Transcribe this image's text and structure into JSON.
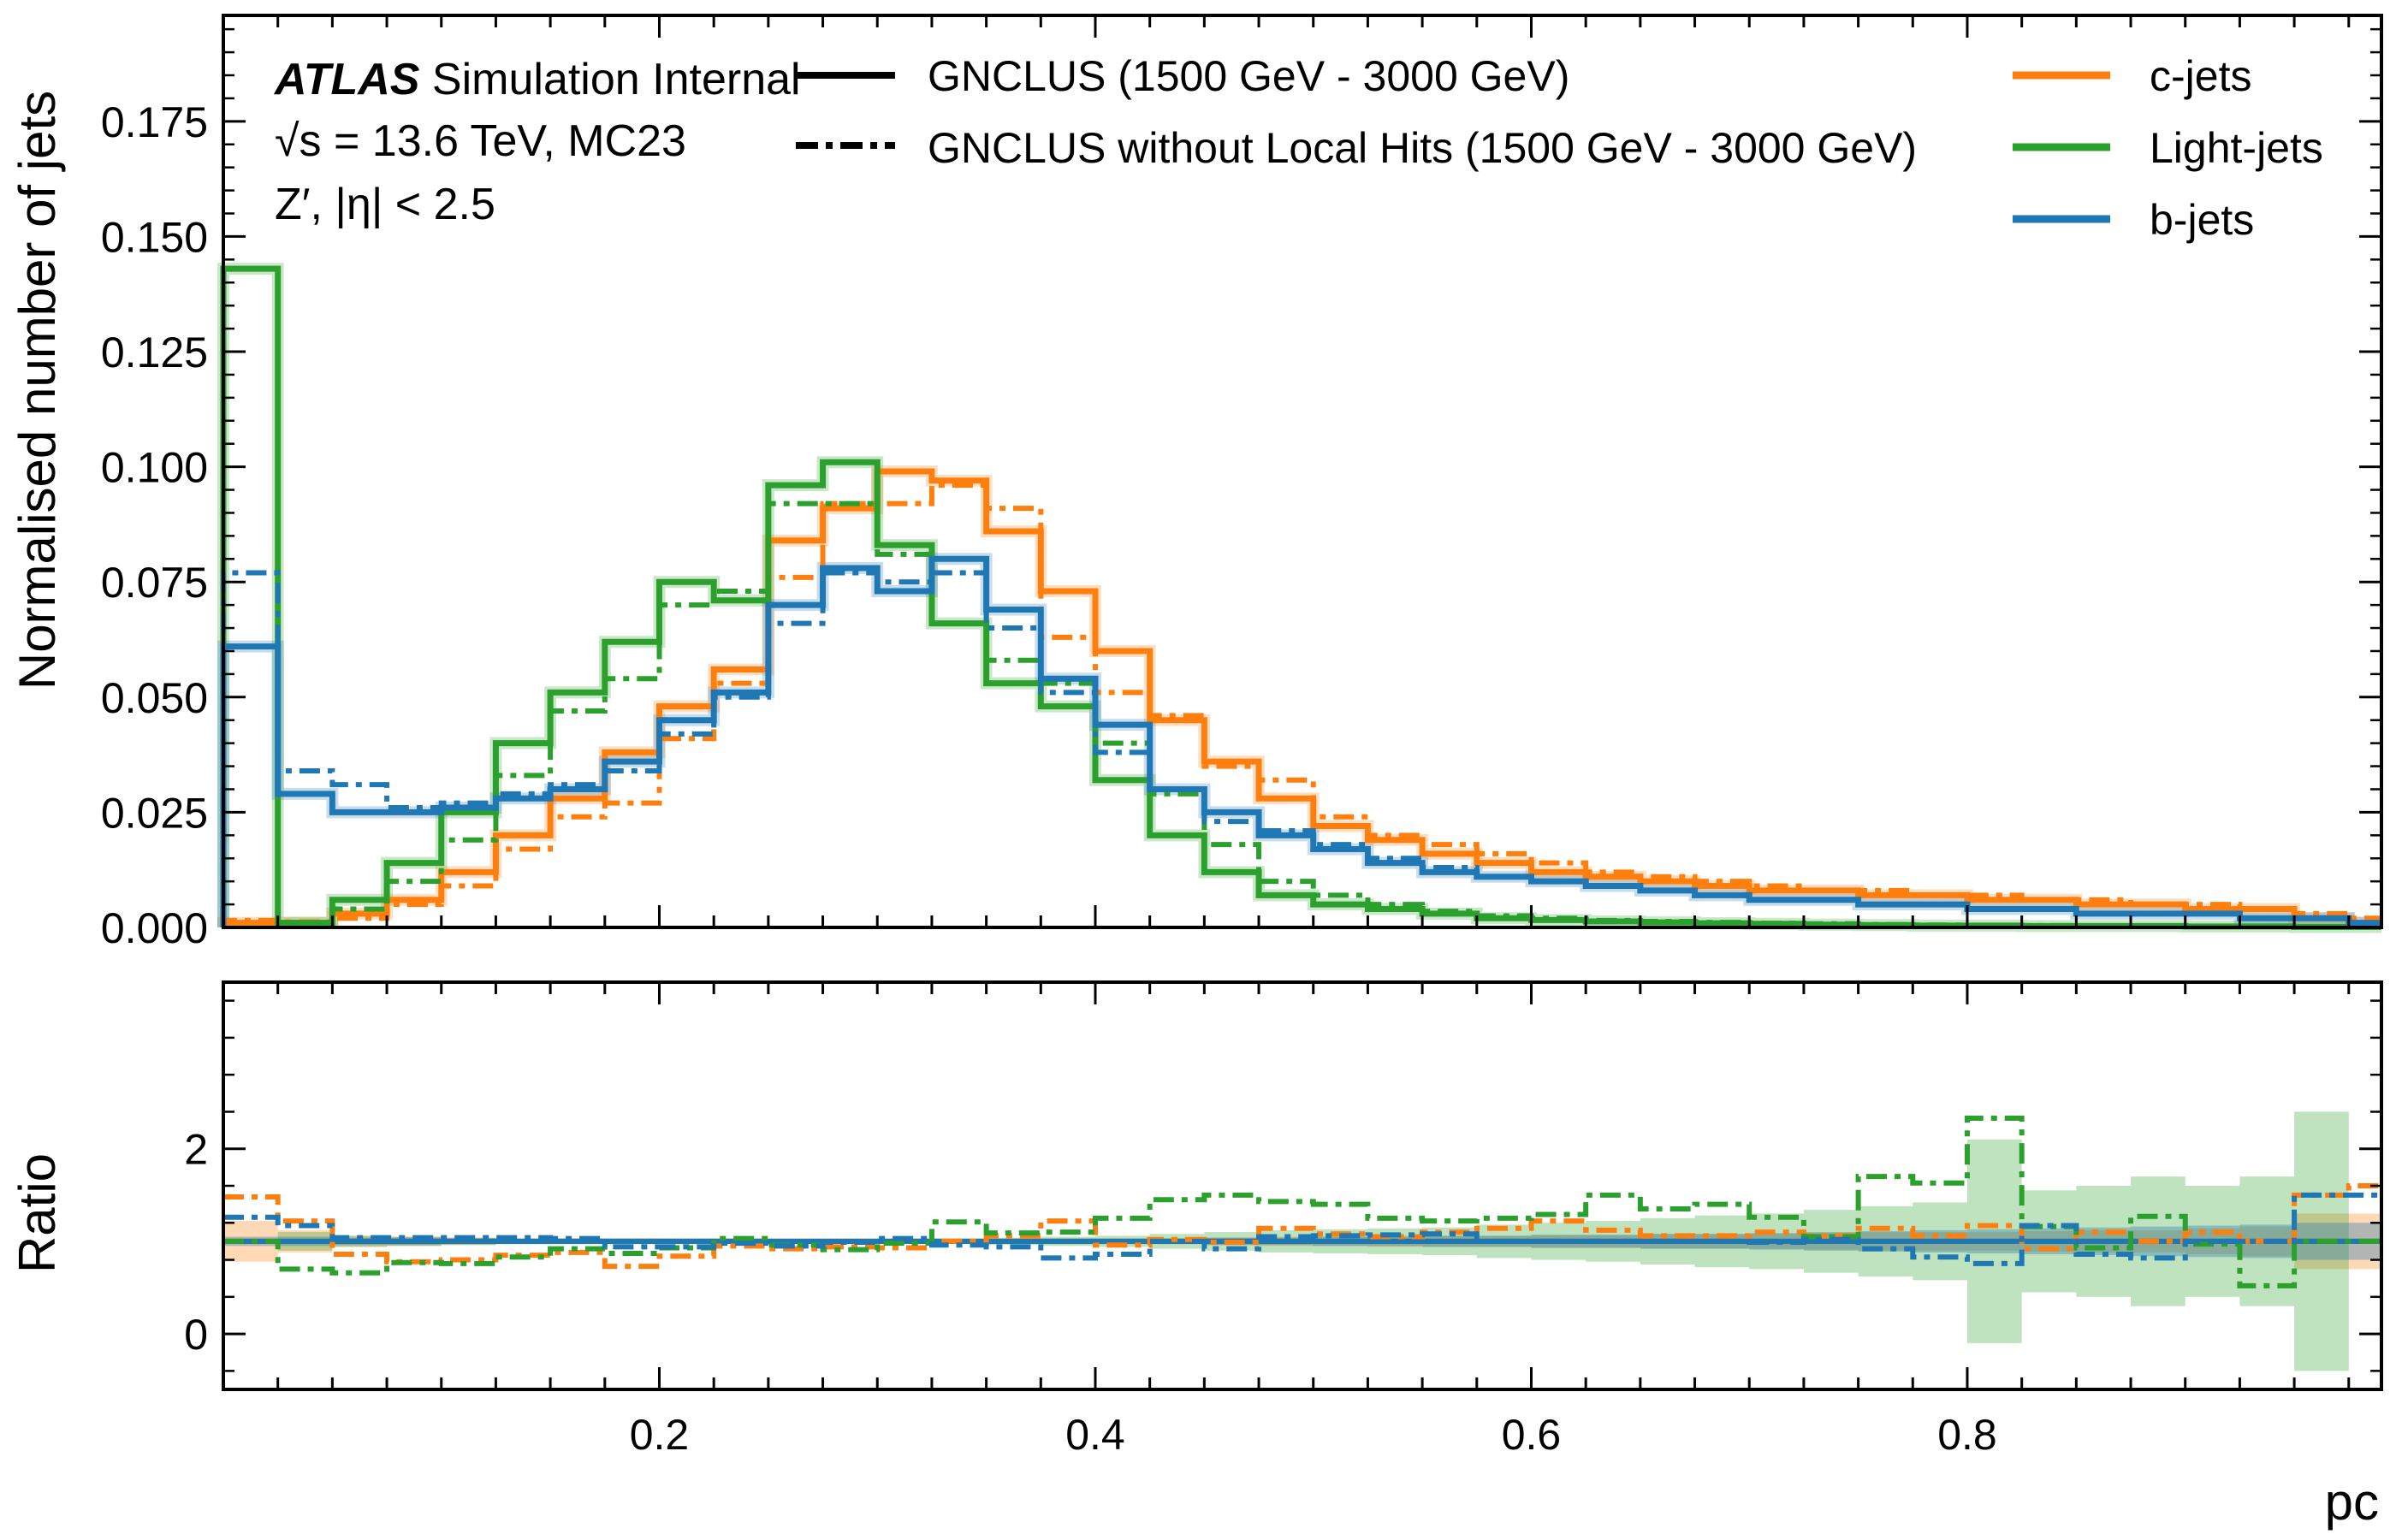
{
  "chart_data": {
    "type": "step-histogram-with-ratio",
    "atlas_label": {
      "bold": "ATLAS",
      "rest": " Simulation Internal",
      "line2": "√s = 13.6 TeV, MC23",
      "line3": "Z′, |η| < 2.5"
    },
    "style_legend": [
      {
        "label": "GNCLUS (1500 GeV - 3000 GeV)",
        "style": "solid"
      },
      {
        "label": "GNCLUS without Local Hits (1500 GeV - 3000 GeV)",
        "style": "dashdot"
      }
    ],
    "flavour_legend": [
      {
        "label": "c-jets",
        "color": "#ff7f0e"
      },
      {
        "label": "Light-jets",
        "color": "#2ca02c"
      },
      {
        "label": "b-jets",
        "color": "#1f77b4"
      }
    ],
    "xlabel": "pc",
    "top_ylabel": "Normalised number of jets",
    "bottom_ylabel": "Ratio",
    "xlim": [
      0.0,
      0.99
    ],
    "top_ylim": [
      0.0,
      0.198
    ],
    "bottom_ylim": [
      -0.6,
      3.8
    ],
    "x_ticks": [
      "0.2",
      "0.4",
      "0.6",
      "0.8"
    ],
    "x_tick_values": [
      0.2,
      0.4,
      0.6,
      0.8
    ],
    "top_y_ticks": [
      "0.000",
      "0.025",
      "0.050",
      "0.075",
      "0.100",
      "0.125",
      "0.150",
      "0.175"
    ],
    "top_y_tick_values": [
      0.0,
      0.025,
      0.05,
      0.075,
      0.1,
      0.125,
      0.15,
      0.175
    ],
    "bottom_y_ticks": [
      "0",
      "2"
    ],
    "bottom_y_tick_values": [
      0,
      2
    ],
    "bin_edges": [
      0.0,
      0.025,
      0.05,
      0.075,
      0.1,
      0.125,
      0.15,
      0.175,
      0.2,
      0.225,
      0.25,
      0.275,
      0.3,
      0.325,
      0.35,
      0.375,
      0.4,
      0.425,
      0.45,
      0.475,
      0.5,
      0.525,
      0.55,
      0.575,
      0.6,
      0.625,
      0.65,
      0.675,
      0.7,
      0.725,
      0.75,
      0.775,
      0.8,
      0.825,
      0.85,
      0.875,
      0.9,
      0.925,
      0.95,
      0.975,
      1.0
    ],
    "series": [
      {
        "flavour": "c-jets",
        "variant": "GNCLUS",
        "color": "#ff7f0e",
        "style": "solid",
        "values": [
          0.001,
          0.001,
          0.003,
          0.006,
          0.012,
          0.02,
          0.028,
          0.038,
          0.048,
          0.056,
          0.084,
          0.091,
          0.099,
          0.097,
          0.086,
          0.073,
          0.06,
          0.045,
          0.036,
          0.028,
          0.022,
          0.019,
          0.016,
          0.014,
          0.012,
          0.011,
          0.01,
          0.009,
          0.008,
          0.008,
          0.007,
          0.007,
          0.006,
          0.006,
          0.005,
          0.005,
          0.004,
          0.004,
          0.002,
          0.001
        ]
      },
      {
        "flavour": "c-jets",
        "variant": "GNCLUS without Local Hits",
        "color": "#ff7f0e",
        "style": "dashdot",
        "values": [
          0.0015,
          0.0012,
          0.002,
          0.005,
          0.009,
          0.017,
          0.024,
          0.027,
          0.041,
          0.053,
          0.076,
          0.092,
          0.092,
          0.096,
          0.091,
          0.063,
          0.051,
          0.046,
          0.035,
          0.032,
          0.024,
          0.02,
          0.018,
          0.016,
          0.014,
          0.012,
          0.011,
          0.01,
          0.009,
          0.008,
          0.008,
          0.007,
          0.007,
          0.006,
          0.006,
          0.005,
          0.005,
          0.004,
          0.003,
          0.002
        ]
      },
      {
        "flavour": "Light-jets",
        "variant": "GNCLUS",
        "color": "#2ca02c",
        "style": "solid",
        "values": [
          0.143,
          0.001,
          0.006,
          0.014,
          0.025,
          0.04,
          0.051,
          0.062,
          0.075,
          0.071,
          0.096,
          0.101,
          0.083,
          0.066,
          0.053,
          0.048,
          0.032,
          0.02,
          0.012,
          0.007,
          0.005,
          0.004,
          0.003,
          0.002,
          0.0016,
          0.0013,
          0.0011,
          0.0009,
          0.0008,
          0.0006,
          0.0005,
          0.0004,
          0.0004,
          0.0003,
          0.0003,
          0.0003,
          0.0002,
          0.0002,
          0.0001,
          0.0001
        ]
      },
      {
        "flavour": "Light-jets",
        "variant": "GNCLUS without Local Hits",
        "color": "#2ca02c",
        "style": "dashdot",
        "values": [
          0.143,
          0.001,
          0.004,
          0.01,
          0.019,
          0.033,
          0.047,
          0.054,
          0.07,
          0.073,
          0.092,
          0.092,
          0.081,
          0.08,
          0.058,
          0.053,
          0.04,
          0.029,
          0.018,
          0.01,
          0.007,
          0.005,
          0.0035,
          0.0025,
          0.002,
          0.0015,
          0.0013,
          0.0011,
          0.0009,
          0.0008,
          0.0006,
          0.0005,
          0.0004,
          0.0004,
          0.0003,
          0.0003,
          0.0002,
          0.0002,
          0.0001,
          0.0001
        ]
      },
      {
        "flavour": "b-jets",
        "variant": "GNCLUS",
        "color": "#1f77b4",
        "style": "solid",
        "values": [
          0.061,
          0.029,
          0.025,
          0.025,
          0.026,
          0.028,
          0.03,
          0.036,
          0.045,
          0.051,
          0.07,
          0.078,
          0.073,
          0.08,
          0.069,
          0.054,
          0.044,
          0.03,
          0.025,
          0.02,
          0.017,
          0.014,
          0.012,
          0.011,
          0.01,
          0.009,
          0.008,
          0.007,
          0.006,
          0.006,
          0.005,
          0.005,
          0.004,
          0.004,
          0.003,
          0.003,
          0.003,
          0.002,
          0.002,
          0.001
        ]
      },
      {
        "flavour": "b-jets",
        "variant": "GNCLUS without Local Hits",
        "color": "#1f77b4",
        "style": "dashdot",
        "values": [
          0.077,
          0.034,
          0.031,
          0.026,
          0.027,
          0.029,
          0.031,
          0.034,
          0.042,
          0.05,
          0.066,
          0.077,
          0.075,
          0.077,
          0.065,
          0.051,
          0.038,
          0.03,
          0.023,
          0.021,
          0.018,
          0.015,
          0.013,
          0.011,
          0.01,
          0.009,
          0.008,
          0.007,
          0.006,
          0.006,
          0.005,
          0.005,
          0.004,
          0.004,
          0.003,
          0.003,
          0.003,
          0.002,
          0.002,
          0.001
        ]
      }
    ],
    "ratio_series": [
      {
        "flavour": "c-jets",
        "color": "#ff7f0e",
        "values": [
          1.48,
          1.22,
          0.86,
          0.78,
          0.8,
          0.85,
          0.88,
          0.73,
          0.84,
          0.95,
          0.92,
          0.94,
          0.93,
          1.0,
          1.06,
          1.22,
          0.96,
          1.02,
          0.99,
          1.14,
          1.08,
          1.05,
          1.1,
          1.14,
          1.22,
          1.12,
          1.06,
          1.06,
          1.1,
          1.06,
          1.14,
          1.06,
          1.17,
          0.92,
          1.1,
          1.0,
          1.1,
          1.0,
          1.5,
          1.6
        ],
        "band_half_width": [
          0.22,
          0.12,
          0.06,
          0.05,
          0.04,
          0.03,
          0.03,
          0.03,
          0.03,
          0.03,
          0.02,
          0.02,
          0.02,
          0.02,
          0.02,
          0.03,
          0.03,
          0.03,
          0.04,
          0.05,
          0.05,
          0.06,
          0.06,
          0.06,
          0.07,
          0.07,
          0.08,
          0.08,
          0.08,
          0.09,
          0.1,
          0.1,
          0.1,
          0.11,
          0.12,
          0.12,
          0.14,
          0.16,
          0.3,
          0.3
        ]
      },
      {
        "flavour": "Light-jets",
        "color": "#2ca02c",
        "values": [
          1.0,
          0.7,
          0.66,
          0.77,
          0.76,
          0.83,
          0.92,
          0.87,
          0.93,
          1.03,
          0.96,
          0.91,
          0.98,
          1.21,
          1.09,
          1.1,
          1.25,
          1.45,
          1.5,
          1.43,
          1.4,
          1.25,
          1.22,
          1.25,
          1.29,
          1.5,
          1.35,
          1.4,
          1.26,
          1.05,
          1.7,
          1.63,
          2.33,
          1.16,
          0.93,
          1.27,
          0.97,
          0.52,
          1.0,
          1.0
        ],
        "band_half_width": [
          0.02,
          0.1,
          0.06,
          0.05,
          0.04,
          0.03,
          0.03,
          0.03,
          0.03,
          0.03,
          0.02,
          0.02,
          0.03,
          0.03,
          0.04,
          0.05,
          0.06,
          0.08,
          0.1,
          0.12,
          0.13,
          0.14,
          0.15,
          0.18,
          0.2,
          0.22,
          0.25,
          0.28,
          0.3,
          0.34,
          0.38,
          0.42,
          1.1,
          0.55,
          0.6,
          0.7,
          0.6,
          0.7,
          1.4,
          0.02
        ]
      },
      {
        "flavour": "b-jets",
        "color": "#1f77b4",
        "values": [
          1.26,
          1.17,
          1.04,
          1.04,
          1.04,
          1.04,
          1.03,
          0.94,
          0.94,
          0.98,
          0.95,
          0.99,
          1.03,
          0.96,
          0.94,
          0.82,
          0.86,
          1.0,
          0.92,
          1.05,
          1.06,
          1.07,
          1.08,
          1.0,
          1.0,
          1.0,
          1.0,
          1.0,
          0.99,
          1.02,
          0.92,
          0.83,
          0.76,
          1.17,
          0.86,
          0.82,
          1.0,
          1.0,
          1.5,
          1.5
        ],
        "band_half_width": [
          0.05,
          0.05,
          0.04,
          0.04,
          0.03,
          0.03,
          0.03,
          0.03,
          0.02,
          0.02,
          0.02,
          0.02,
          0.02,
          0.02,
          0.02,
          0.03,
          0.03,
          0.03,
          0.04,
          0.04,
          0.05,
          0.05,
          0.06,
          0.06,
          0.07,
          0.07,
          0.08,
          0.08,
          0.09,
          0.1,
          0.11,
          0.12,
          0.13,
          0.14,
          0.15,
          0.16,
          0.17,
          0.18,
          0.2,
          0.2
        ]
      }
    ]
  }
}
